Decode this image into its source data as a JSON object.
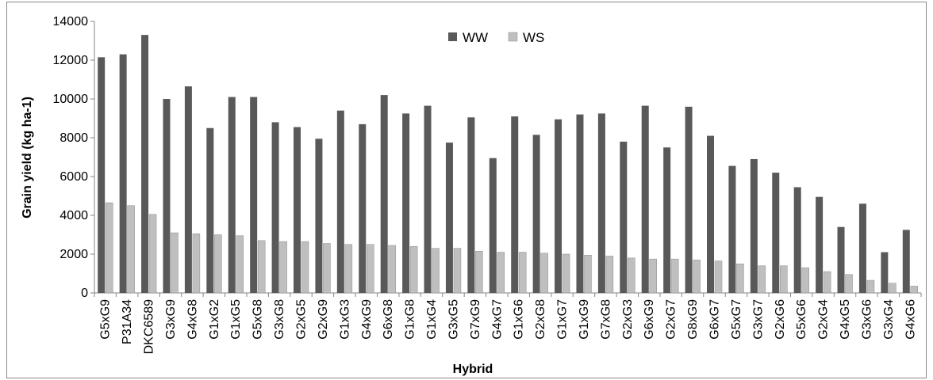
{
  "chart_data": {
    "type": "bar",
    "title": "",
    "xlabel": "Hybrid",
    "ylabel": "Grain yield (kg ha-1)",
    "ylim": [
      0,
      14000
    ],
    "yticks": [
      "0",
      "2000",
      "4000",
      "6000",
      "8000",
      "10000",
      "12000",
      "14000"
    ],
    "grid": false,
    "legend_position": "top-center",
    "categories": [
      "G5xG9",
      "P31A34",
      "DKC6589",
      "G3xG9",
      "G4xG8",
      "G1xG2",
      "G1xG5",
      "G5xG8",
      "G3xG8",
      "G2xG5",
      "G2xG9",
      "G1xG3",
      "G4xG9",
      "G6xG8",
      "G1xG8",
      "G1xG4",
      "G3xG5",
      "G7xG9",
      "G4xG7",
      "G1xG6",
      "G2xG8",
      "G1xG7",
      "G1xG9",
      "G7xG8",
      "G2xG3",
      "G6xG9",
      "G2xG7",
      "G8xG9",
      "G6xG7",
      "G5xG7",
      "G3xG7",
      "G2xG6",
      "G5xG6",
      "G2xG4",
      "G4xG5",
      "G3xG6",
      "G3xG4",
      "G4xG6"
    ],
    "series": [
      {
        "name": "WW",
        "color": "#595959",
        "values": [
          12150,
          12300,
          13300,
          10000,
          10650,
          8500,
          10100,
          10100,
          8800,
          8550,
          7950,
          9400,
          8700,
          10200,
          9250,
          9650,
          7750,
          9050,
          6950,
          9100,
          8150,
          8950,
          9200,
          9250,
          7800,
          9650,
          7500,
          9600,
          8100,
          6550,
          6900,
          6200,
          5450,
          4950,
          3400,
          4600,
          2100,
          3250
        ]
      },
      {
        "name": "WS",
        "color": "#bfbfbf",
        "values": [
          4650,
          4500,
          4050,
          3100,
          3050,
          3000,
          2950,
          2700,
          2650,
          2650,
          2550,
          2500,
          2500,
          2450,
          2400,
          2300,
          2300,
          2150,
          2100,
          2100,
          2050,
          2000,
          1950,
          1900,
          1800,
          1750,
          1750,
          1700,
          1650,
          1500,
          1400,
          1400,
          1300,
          1100,
          950,
          650,
          500,
          350
        ]
      }
    ]
  }
}
